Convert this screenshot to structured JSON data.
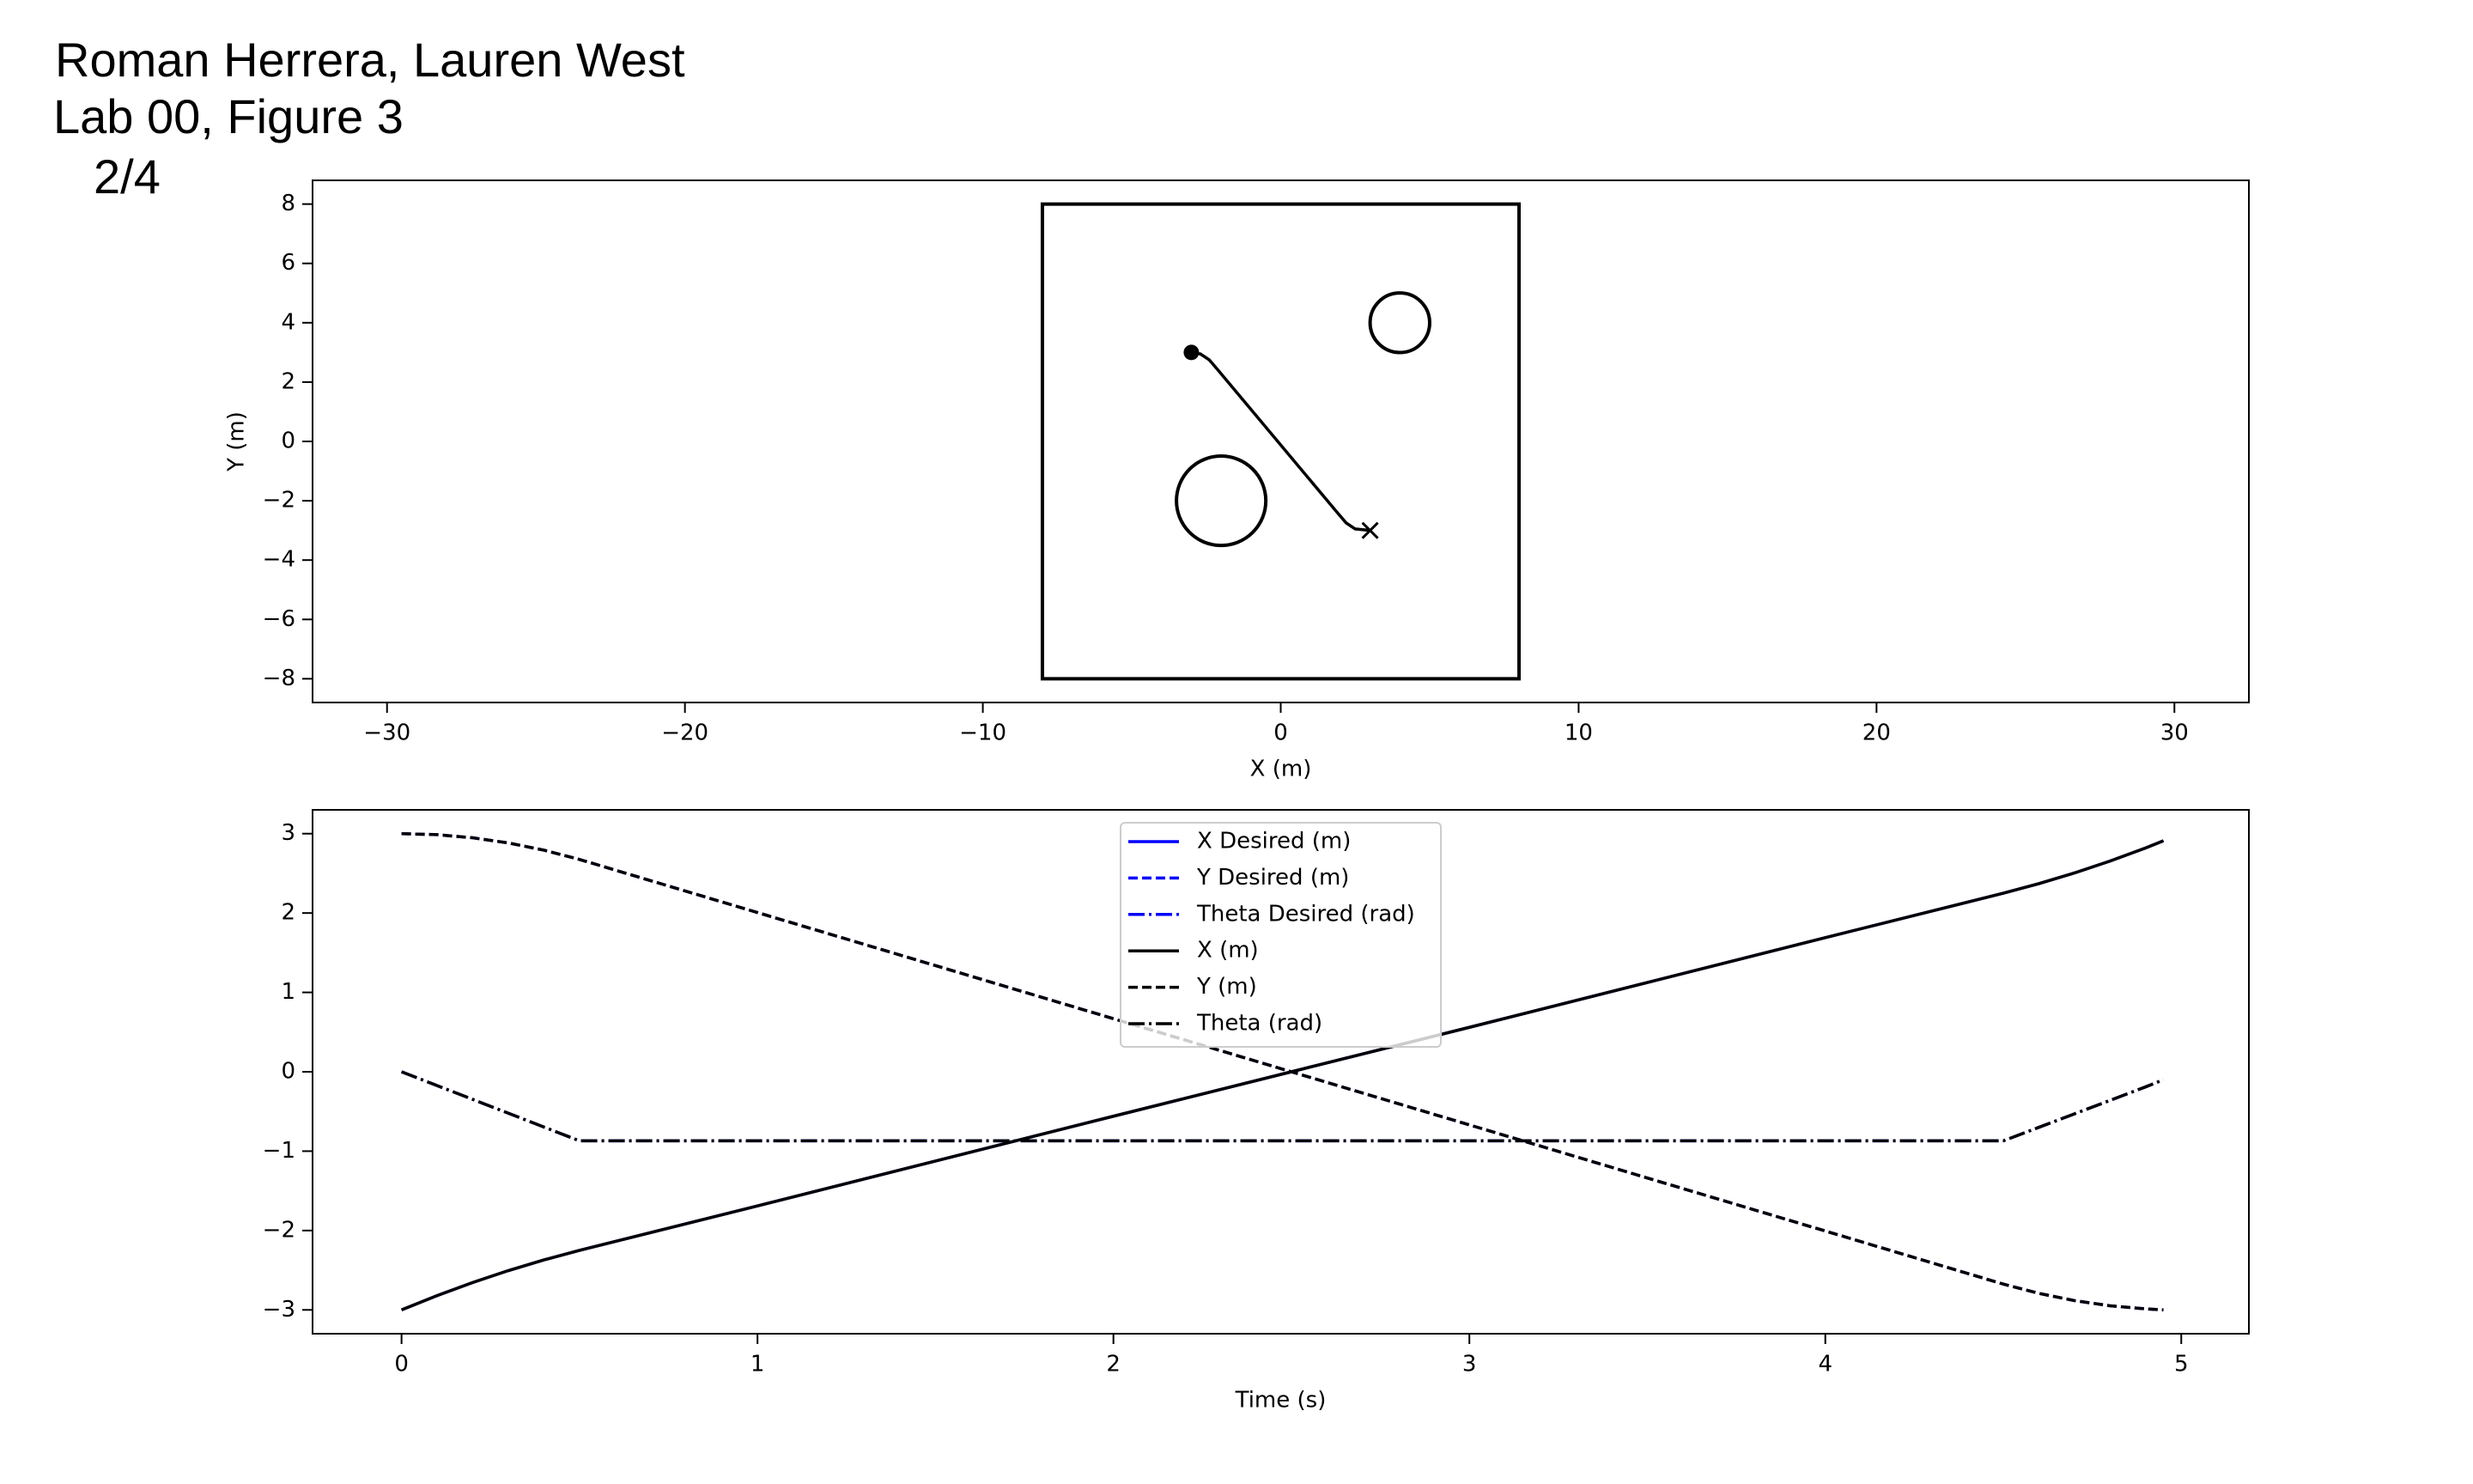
{
  "figure_title": [
    "Roman Herrera, Lauren West",
    "Lab 00, Figure 3",
    "2/4"
  ],
  "chart_data": [
    {
      "type": "map",
      "xlabel": "X (m)",
      "ylabel": "Y (m)",
      "xlim": [
        -32.5,
        32.5
      ],
      "ylim": [
        -8.8,
        8.8
      ],
      "xticks": [
        {
          "value": -30,
          "label": "−30"
        },
        {
          "value": -20,
          "label": "−20"
        },
        {
          "value": -10,
          "label": "−10"
        },
        0,
        10,
        20,
        30
      ],
      "yticks": [
        {
          "value": -8,
          "label": "−8"
        },
        {
          "value": -6,
          "label": "−6"
        },
        {
          "value": -4,
          "label": "−4"
        },
        {
          "value": -2,
          "label": "−2"
        },
        0,
        2,
        4,
        6,
        8
      ],
      "boundary": {
        "x": [
          -8,
          8
        ],
        "y": [
          -8,
          8
        ]
      },
      "obstacles": [
        {
          "x": 4,
          "y": 4,
          "r": 1
        },
        {
          "x": -2,
          "y": -2,
          "r": 1.5
        }
      ],
      "trajectory": {
        "x": [
          -3,
          -2.7,
          -2.4,
          -2.1,
          1.9,
          2.2,
          2.5,
          3
        ],
        "y": [
          3,
          2.95,
          2.75,
          2.4,
          -2.4,
          -2.75,
          -2.95,
          -3
        ]
      },
      "start": {
        "x": -3,
        "y": 3
      },
      "goal": {
        "x": 3,
        "y": -3
      },
      "color": "#000000"
    },
    {
      "type": "line",
      "xlabel": "Time (s)",
      "xlim": [
        -0.25,
        5.19
      ],
      "ylim": [
        -3.3,
        3.3
      ],
      "xticks": [
        0,
        1,
        2,
        3,
        4,
        5
      ],
      "yticks": [
        {
          "value": -3,
          "label": "−3"
        },
        {
          "value": -2,
          "label": "−2"
        },
        {
          "value": -1,
          "label": "−1"
        },
        0,
        1,
        2,
        3
      ],
      "legend": "upper center",
      "x": [
        0,
        0.1,
        0.2,
        0.3,
        0.4,
        0.5,
        1,
        1.5,
        2,
        2.5,
        3,
        3.5,
        4,
        4.5,
        4.6,
        4.7,
        4.8,
        4.9,
        4.95
      ],
      "series": [
        {
          "name": "X Desired (m)",
          "color": "#0000ff",
          "style": "solid",
          "values": [
            -3,
            -2.82,
            -2.655,
            -2.505,
            -2.37,
            -2.25,
            -1.69,
            -1.125,
            -0.56,
            0,
            0.56,
            1.125,
            1.69,
            2.25,
            2.37,
            2.505,
            2.655,
            2.82,
            2.91
          ]
        },
        {
          "name": "Y Desired (m)",
          "color": "#0000ff",
          "style": "dashed",
          "values": [
            3,
            2.987,
            2.948,
            2.883,
            2.792,
            2.675,
            2.006,
            1.338,
            0.669,
            0,
            -0.669,
            -1.338,
            -2.006,
            -2.675,
            -2.792,
            -2.883,
            -2.948,
            -2.987,
            -3
          ]
        },
        {
          "name": "Theta Desired (rad)",
          "color": "#0000ff",
          "style": "dashdot",
          "values": [
            0,
            -0.174,
            -0.348,
            -0.522,
            -0.696,
            -0.87,
            -0.87,
            -0.87,
            -0.87,
            -0.87,
            -0.87,
            -0.87,
            -0.87,
            -0.87,
            -0.7,
            -0.53,
            -0.36,
            -0.19,
            -0.1
          ]
        },
        {
          "name": "X (m)",
          "color": "#000000",
          "style": "solid",
          "values": [
            -3,
            -2.82,
            -2.655,
            -2.505,
            -2.37,
            -2.25,
            -1.69,
            -1.125,
            -0.56,
            0,
            0.56,
            1.125,
            1.69,
            2.25,
            2.37,
            2.505,
            2.655,
            2.82,
            2.91
          ]
        },
        {
          "name": "Y (m)",
          "color": "#000000",
          "style": "dashed",
          "values": [
            3,
            2.987,
            2.948,
            2.883,
            2.792,
            2.675,
            2.006,
            1.338,
            0.669,
            0,
            -0.669,
            -1.338,
            -2.006,
            -2.675,
            -2.792,
            -2.883,
            -2.948,
            -2.987,
            -3
          ]
        },
        {
          "name": "Theta (rad)",
          "color": "#000000",
          "style": "dashdot",
          "values": [
            0,
            -0.174,
            -0.348,
            -0.522,
            -0.696,
            -0.87,
            -0.87,
            -0.87,
            -0.87,
            -0.87,
            -0.87,
            -0.87,
            -0.87,
            -0.87,
            -0.7,
            -0.53,
            -0.36,
            -0.19,
            -0.1
          ]
        }
      ]
    }
  ]
}
